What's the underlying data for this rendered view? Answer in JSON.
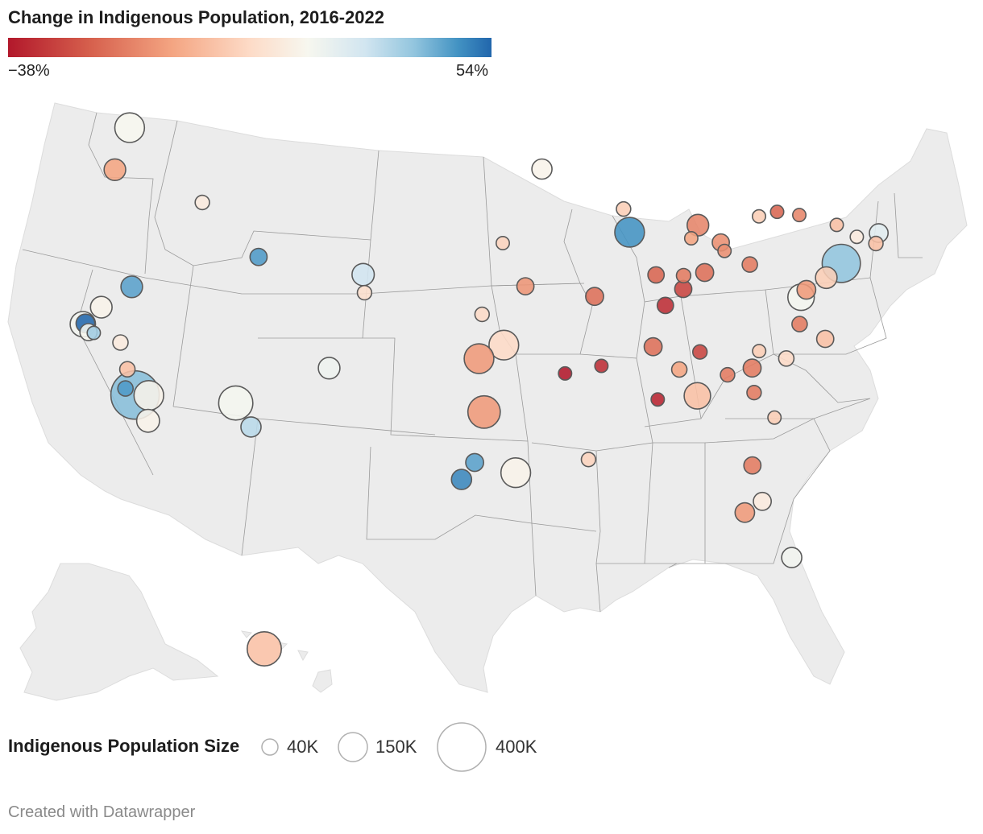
{
  "title": "Change in Indigenous Population, 2016-2022",
  "colorbar": {
    "min_label": "−38%",
    "max_label": "54%",
    "min": -38,
    "max": 54
  },
  "legend": {
    "title": "Indigenous Population Size",
    "items": [
      {
        "label": "40K",
        "value": 40000
      },
      {
        "label": "150K",
        "value": 150000
      },
      {
        "label": "400K",
        "value": 400000
      }
    ]
  },
  "credit": "Created with Datawrapper",
  "colors": {
    "land": "#ececec",
    "border": "#8c8c8c",
    "bubble_stroke": "#5a5a5a"
  },
  "bubbles": [
    {
      "lon": -122.33,
      "lat": 47.61,
      "pop": 150000,
      "change": 3
    },
    {
      "lon": -122.68,
      "lat": 45.52,
      "pop": 80000,
      "change": -12
    },
    {
      "lon": -116.2,
      "lat": 43.62,
      "pop": 35000,
      "change": 0
    },
    {
      "lon": -111.89,
      "lat": 40.76,
      "pop": 50000,
      "change": 40
    },
    {
      "lon": -121.49,
      "lat": 38.58,
      "pop": 80000,
      "change": 2
    },
    {
      "lon": -122.42,
      "lat": 37.77,
      "pop": 110000,
      "change": 5
    },
    {
      "lon": -122.27,
      "lat": 37.8,
      "pop": 60000,
      "change": 54
    },
    {
      "lon": -121.95,
      "lat": 37.35,
      "pop": 50000,
      "change": 3
    },
    {
      "lon": -121.6,
      "lat": 37.3,
      "pop": 30000,
      "change": 25
    },
    {
      "lon": -119.79,
      "lat": 36.74,
      "pop": 40000,
      "change": 0
    },
    {
      "lon": -119.02,
      "lat": 35.37,
      "pop": 40000,
      "change": -8
    },
    {
      "lon": -119.81,
      "lat": 39.53,
      "pop": 80000,
      "change": 38
    },
    {
      "lon": -118.9,
      "lat": 34.4,
      "pop": 40000,
      "change": 40
    },
    {
      "lon": -118.24,
      "lat": 34.05,
      "pop": 400000,
      "change": 30
    },
    {
      "lon": -117.4,
      "lat": 34.0,
      "pop": 150000,
      "change": 2
    },
    {
      "lon": -117.16,
      "lat": 32.72,
      "pop": 90000,
      "change": 2
    },
    {
      "lon": -112.07,
      "lat": 33.45,
      "pop": 200000,
      "change": 4
    },
    {
      "lon": -110.97,
      "lat": 32.22,
      "pop": 70000,
      "change": 20
    },
    {
      "lon": -106.65,
      "lat": 35.08,
      "pop": 80000,
      "change": 6
    },
    {
      "lon": -104.99,
      "lat": 39.74,
      "pop": 85000,
      "change": 15
    },
    {
      "lon": -104.82,
      "lat": 38.83,
      "pop": 35000,
      "change": -3
    },
    {
      "lon": -93.27,
      "lat": 44.98,
      "pop": 70000,
      "change": 2
    },
    {
      "lon": -96.0,
      "lat": 41.26,
      "pop": 30000,
      "change": -5
    },
    {
      "lon": -94.58,
      "lat": 39.1,
      "pop": 50000,
      "change": -15
    },
    {
      "lon": -97.34,
      "lat": 37.69,
      "pop": 35000,
      "change": -4
    },
    {
      "lon": -95.99,
      "lat": 36.15,
      "pop": 150000,
      "change": -4
    },
    {
      "lon": -97.52,
      "lat": 35.47,
      "pop": 150000,
      "change": -14
    },
    {
      "lon": -97.2,
      "lat": 32.8,
      "pop": 180000,
      "change": -14
    },
    {
      "lon": -95.37,
      "lat": 29.76,
      "pop": 150000,
      "change": 2
    },
    {
      "lon": -97.74,
      "lat": 30.27,
      "pop": 55000,
      "change": 38
    },
    {
      "lon": -98.49,
      "lat": 29.42,
      "pop": 70000,
      "change": 45
    },
    {
      "lon": -155.5,
      "lat": 19.6,
      "pop": 200000,
      "change": -8
    },
    {
      "lon": -91.14,
      "lat": 30.45,
      "pop": 35000,
      "change": -5
    },
    {
      "lon": -92.29,
      "lat": 34.75,
      "pop": 30000,
      "change": -38
    },
    {
      "lon": -90.05,
      "lat": 35.15,
      "pop": 30000,
      "change": -34
    },
    {
      "lon": -86.8,
      "lat": 33.52,
      "pop": 30000,
      "change": -36
    },
    {
      "lon": -87.9,
      "lat": 43.04,
      "pop": 35000,
      "change": -6
    },
    {
      "lon": -87.63,
      "lat": 41.88,
      "pop": 150000,
      "change": 42
    },
    {
      "lon": -90.2,
      "lat": 38.63,
      "pop": 55000,
      "change": -22
    },
    {
      "lon": -86.16,
      "lat": 39.77,
      "pop": 45000,
      "change": -24
    },
    {
      "lon": -85.76,
      "lat": 38.25,
      "pop": 45000,
      "change": -34
    },
    {
      "lon": -84.51,
      "lat": 39.1,
      "pop": 50000,
      "change": -30
    },
    {
      "lon": -84.39,
      "lat": 39.77,
      "pop": 35000,
      "change": -20
    },
    {
      "lon": -83.0,
      "lat": 39.96,
      "pop": 55000,
      "change": -22
    },
    {
      "lon": -83.05,
      "lat": 42.33,
      "pop": 80000,
      "change": -18
    },
    {
      "lon": -83.6,
      "lat": 41.66,
      "pop": 30000,
      "change": -12
    },
    {
      "lon": -81.69,
      "lat": 41.5,
      "pop": 50000,
      "change": -16
    },
    {
      "lon": -81.52,
      "lat": 41.08,
      "pop": 30000,
      "change": -16
    },
    {
      "lon": -80.0,
      "lat": 40.44,
      "pop": 40000,
      "change": -20
    },
    {
      "lon": -86.78,
      "lat": 36.16,
      "pop": 55000,
      "change": -22
    },
    {
      "lon": -83.92,
      "lat": 35.96,
      "pop": 35000,
      "change": -30
    },
    {
      "lon": -85.31,
      "lat": 35.05,
      "pop": 40000,
      "change": -12
    },
    {
      "lon": -84.39,
      "lat": 33.75,
      "pop": 120000,
      "change": -8
    },
    {
      "lon": -82.4,
      "lat": 34.85,
      "pop": 35000,
      "change": -20
    },
    {
      "lon": -80.84,
      "lat": 35.23,
      "pop": 55000,
      "change": -20
    },
    {
      "lon": -80.94,
      "lat": 34.0,
      "pop": 35000,
      "change": -20
    },
    {
      "lon": -79.94,
      "lat": 32.78,
      "pop": 30000,
      "change": -6
    },
    {
      "lon": -80.25,
      "lat": 36.1,
      "pop": 30000,
      "change": -6
    },
    {
      "lon": -78.64,
      "lat": 35.78,
      "pop": 40000,
      "change": -4
    },
    {
      "lon": -77.44,
      "lat": 37.54,
      "pop": 40000,
      "change": -20
    },
    {
      "lon": -76.0,
      "lat": 36.85,
      "pop": 50000,
      "change": -8
    },
    {
      "lon": -77.04,
      "lat": 38.9,
      "pop": 120000,
      "change": 4
    },
    {
      "lon": -76.61,
      "lat": 39.29,
      "pop": 60000,
      "change": -14
    },
    {
      "lon": -75.17,
      "lat": 39.95,
      "pop": 80000,
      "change": -6
    },
    {
      "lon": -74.0,
      "lat": 40.71,
      "pop": 250000,
      "change": 28
    },
    {
      "lon": -78.88,
      "lat": 42.89,
      "pop": 30000,
      "change": -6
    },
    {
      "lon": -77.61,
      "lat": 43.16,
      "pop": 30000,
      "change": -24
    },
    {
      "lon": -76.15,
      "lat": 43.05,
      "pop": 30000,
      "change": -18
    },
    {
      "lon": -73.76,
      "lat": 42.65,
      "pop": 30000,
      "change": -8
    },
    {
      "lon": -72.59,
      "lat": 42.1,
      "pop": 30000,
      "change": 0
    },
    {
      "lon": -71.41,
      "lat": 41.82,
      "pop": 35000,
      "change": -8
    },
    {
      "lon": -71.06,
      "lat": 42.36,
      "pop": 60000,
      "change": 10
    },
    {
      "lon": -81.66,
      "lat": 30.33,
      "pop": 50000,
      "change": -20
    },
    {
      "lon": -81.38,
      "lat": 28.54,
      "pop": 55000,
      "change": 0
    },
    {
      "lon": -82.46,
      "lat": 27.95,
      "pop": 65000,
      "change": -14
    },
    {
      "lon": -80.19,
      "lat": 25.76,
      "pop": 70000,
      "change": 5
    }
  ]
}
